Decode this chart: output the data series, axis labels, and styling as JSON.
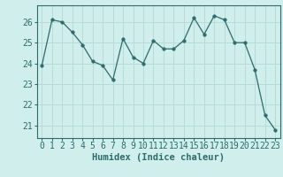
{
  "x": [
    0,
    1,
    2,
    3,
    4,
    5,
    6,
    7,
    8,
    9,
    10,
    11,
    12,
    13,
    14,
    15,
    16,
    17,
    18,
    19,
    20,
    21,
    22,
    23
  ],
  "y": [
    23.9,
    26.1,
    26.0,
    25.5,
    24.9,
    24.1,
    23.9,
    23.2,
    25.2,
    24.3,
    24.0,
    25.1,
    24.7,
    24.7,
    25.1,
    26.2,
    25.4,
    26.3,
    26.1,
    25.0,
    25.0,
    23.7,
    21.5,
    20.8
  ],
  "line_color": "#2e6b6b",
  "marker": "o",
  "marker_size": 2.5,
  "bg_color": "#d0eeec",
  "grid_color": "#b8dbd8",
  "tick_color": "#2e6b6b",
  "xlabel": "Humidex (Indice chaleur)",
  "ylabel_ticks": [
    21,
    22,
    23,
    24,
    25,
    26
  ],
  "ylim": [
    20.4,
    26.8
  ],
  "xlim": [
    -0.5,
    23.5
  ],
  "xlabel_fontsize": 7.5,
  "tick_fontsize": 7
}
